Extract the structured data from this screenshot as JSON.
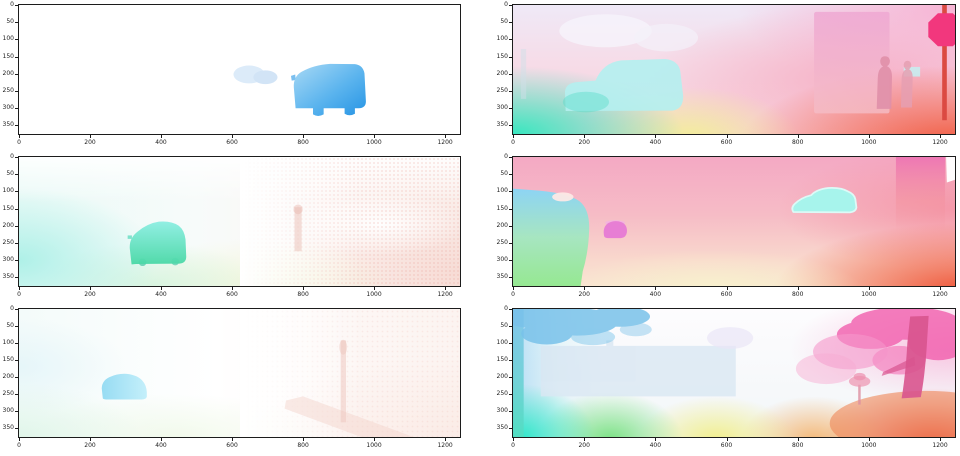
{
  "chart_data": {
    "type": "heatmap",
    "layout": "3 rows x 2 cols of optical-flow visualizations (KITTI-style, left=sparse ground truth, right=dense prediction)",
    "title": "",
    "xlabel": "",
    "ylabel": "",
    "x_ticks": [
      0,
      200,
      400,
      600,
      800,
      1000,
      1200
    ],
    "y_ticks": [
      0,
      50,
      100,
      150,
      200,
      250,
      300,
      350
    ],
    "xlim": [
      0,
      1242
    ],
    "ylim": [
      375,
      0
    ],
    "grid": false,
    "legend": false,
    "panels": [
      {
        "position": "row1-col1",
        "name": "sparse-flow-van",
        "background": "#ffffff",
        "features": [
          {
            "item": "blue van silhouette",
            "bbox_data": [
              772,
              170,
              978,
              325
            ],
            "colors": [
              "#a8d9f5",
              "#2694e4"
            ]
          },
          {
            "item": "faint ghost car",
            "bbox_data": [
              605,
              176,
              730,
              232
            ],
            "color": "#d8e8f8"
          }
        ]
      },
      {
        "position": "row1-col2",
        "name": "dense-flow-street-stop-sign",
        "background": "lavender-top / teal-bottom-left / yellow-bottom-center / red-bottom-right / pink-right",
        "features": [
          {
            "item": "cyan vehicle silhouette",
            "bbox_data": [
              146,
              157,
              480,
              308
            ],
            "color": "#b4efef"
          },
          {
            "item": "pink building",
            "bbox_data": [
              846,
              20,
              1058,
              315
            ],
            "color": "#eea6d2"
          },
          {
            "item": "pedestrian 1",
            "bbox_data": [
              1022,
              149,
              1065,
              302
            ],
            "color": "#e08fa9"
          },
          {
            "item": "pedestrian 2",
            "bbox_data": [
              1090,
              162,
              1123,
              298
            ],
            "color": "#e59fb2"
          },
          {
            "item": "stop sign octagon",
            "bbox_data": [
              1167,
              24,
              1263,
              120
            ],
            "color": "#f2377d"
          },
          {
            "item": "sign pole",
            "bbox_data": [
              1206,
              0,
              1219,
              335
            ],
            "color": "#db4a42"
          },
          {
            "item": "corner colors",
            "bottom_left": "#2de8be",
            "bottom_center": "#f2f096",
            "bottom_right": "#f05032",
            "top": "#efe9f7",
            "right": "#f8aacd"
          }
        ]
      },
      {
        "position": "row2-col1",
        "name": "sparse-flow-teal-car",
        "background": "pale cyan left wash, pale green-yellow bottom, faint pink speckle right",
        "features": [
          {
            "item": "teal hatchback car",
            "bbox_data": [
              310,
              185,
              471,
              318
            ],
            "colors": [
              "#8ceee2",
              "#4ad8a6"
            ]
          },
          {
            "item": "faint reddish pole",
            "bbox_data": [
              776,
              146,
              796,
              274
            ],
            "color": "#eabfb6"
          },
          {
            "item": "bright white blob",
            "bbox_data": [
              930,
              165,
              1110,
              235
            ],
            "color": "#ffffff"
          }
        ]
      },
      {
        "position": "row2-col2",
        "name": "dense-flow-pink-scene",
        "background": "pink overall, cyan-green rounded region lower-left, cream bottom-center, red-orange bottom-right",
        "features": [
          {
            "item": "cyan car silhouette",
            "bbox_data": [
              782,
              88,
              965,
              162
            ],
            "color": "#a7f4ec"
          },
          {
            "item": "magenta blob",
            "bbox_data": [
              255,
              183,
              322,
              236
            ],
            "color": "#e77ed4"
          },
          {
            "item": "cyan-to-green left region",
            "bbox_data": [
              0,
              92,
              215,
              375
            ],
            "colors": [
              "#84d7f8",
              "#8de88c"
            ]
          },
          {
            "item": "dark pink building band",
            "bbox_data": [
              1076,
              0,
              1214,
              215
            ],
            "color": "#ed6fb2"
          },
          {
            "item": "white corner",
            "bbox_data": [
              1217,
              0,
              1242,
              74
            ],
            "color": "#ffffff"
          },
          {
            "item": "small pale blob",
            "bbox_data": [
              110,
              104,
              170,
              130
            ],
            "color": "#fce9e6"
          }
        ]
      },
      {
        "position": "row3-col1",
        "name": "sparse-flow-faint-car",
        "background": "near-white; pale green bottom-left, faint pink right",
        "features": [
          {
            "item": "pale cyan car",
            "bbox_data": [
              233,
              188,
              360,
              266
            ],
            "colors": [
              "#8fd9f2",
              "#bfeefa"
            ]
          },
          {
            "item": "faint pink pole",
            "bbox_data": [
              906,
              92,
              921,
              332
            ],
            "color": "#efc9c1"
          },
          {
            "item": "faint diagonal streak",
            "bbox_data": [
              748,
              256,
              1180,
              412
            ],
            "color": "#f3d5ce"
          }
        ]
      },
      {
        "position": "row3-col2",
        "name": "dense-flow-trees",
        "background": "bottom gradient teal-green-yellow-orange-red; blue left edge; white-pink top",
        "features": [
          {
            "item": "blue tree foliage top-left",
            "bbox_data": [
              0,
              0,
              390,
              110
            ],
            "color": "#79c2ea"
          },
          {
            "item": "pale blue wall",
            "bbox_data": [
              78,
              92,
              626,
              256
            ],
            "color": "#d9e7f3"
          },
          {
            "item": "magenta tree foliage",
            "bbox_data": [
              795,
              0,
              1280,
              230
            ],
            "colors": [
              "#f25fae",
              "#f584c2",
              "#f79cca"
            ]
          },
          {
            "item": "tree trunk",
            "bbox_data": [
              1086,
              20,
              1168,
              266
            ],
            "color": "#d8548e"
          },
          {
            "item": "small sapling",
            "bbox_data": [
              944,
              187,
              1004,
              280
            ],
            "color": "#ee9ab4"
          },
          {
            "item": "orange mound bottom-right",
            "bbox_data": [
              890,
              240,
              1280,
              375
            ],
            "color": "#ee8758"
          },
          {
            "item": "lavender blob top-center",
            "bbox_data": [
              545,
              53,
              675,
              117
            ],
            "color": "#e9e5f6"
          }
        ]
      }
    ]
  }
}
